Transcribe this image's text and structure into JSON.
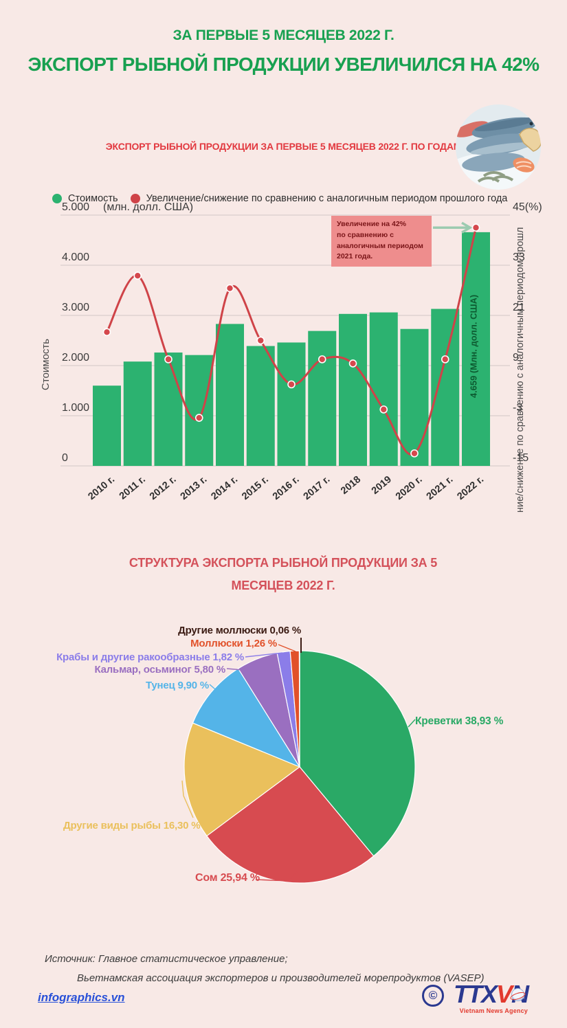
{
  "page": {
    "background": "#f8e9e6"
  },
  "header": {
    "kicker": "ЗА ПЕРВЫЕ 5 МЕСЯЦЕВ 2022 Г.",
    "title": "ЭКСПОРТ РЫБНОЙ ПРОДУКЦИИ УВЕЛИЧИЛСЯ НА 42%",
    "title_color": "#18a050"
  },
  "combo_section": {
    "caption": "ЭКСПОРТ РЫБНОЙ ПРОДУКЦИИ ЗА ПЕРВЫЕ 5 МЕСЯЦЕВ 2022 Г. ПО ГОДАМ",
    "caption_color": "#e2383f"
  },
  "chart_data": [
    {
      "type": "bar+line",
      "title": "ЭКСПОРТ РЫБНОЙ ПРОДУКЦИИ ЗА ПЕРВЫЕ 5 МЕСЯЦЕВ 2022 Г. ПО ГОДАМ",
      "categories": [
        "2010 г.",
        "2011 г.",
        "2012 г.",
        "2013 г.",
        "2014 г.",
        "2015 г.",
        "2016 г.",
        "2017 г.",
        "2018",
        "2019",
        "2020 г.",
        "2021 г.",
        "2022 г."
      ],
      "series": [
        {
          "name": "Стоимость",
          "type": "bar",
          "color": "#2cb270",
          "values": [
            1600,
            2080,
            2260,
            2210,
            2830,
            2390,
            2460,
            2690,
            3030,
            3060,
            2730,
            3130,
            4659
          ]
        },
        {
          "name": "Увеличение/снижение по сравнению с аналогичным периодом прошлого года",
          "type": "line",
          "color": "#cf4348",
          "values": [
            17,
            30.5,
            10.5,
            -3.5,
            27.5,
            15,
            4.5,
            10.5,
            9.5,
            -1.5,
            -12,
            10.5,
            42
          ]
        }
      ],
      "left_axis": {
        "title": "Стоимость",
        "unit": "(млн. долл. США)",
        "ticks": [
          "5.000",
          "4.000",
          "3.000",
          "2.000",
          "1.000",
          "0"
        ],
        "range": [
          0,
          5000
        ]
      },
      "right_axis": {
        "title": "ние/снижение по сравнению с аналогичным периодом прошл",
        "ticks": [
          "45(%)",
          "33",
          "21",
          "9",
          "-3",
          "-15"
        ],
        "range": [
          -15,
          45
        ]
      },
      "grid": "horizontal",
      "legend_position": "top",
      "bar_label": "4.659 (Млн. долл. США)",
      "bar_label_color": "#0d5b31",
      "point_color": "#d5484d",
      "grid_color": "#d9cecd",
      "tick_color": "#3a3a3a",
      "annotation": {
        "lines": [
          "Увеличение на 42%",
          " по сравнению с",
          "аналогичным периодом",
          "2021 года."
        ],
        "bg": "#ee8d8d",
        "text_color": "#7a1518",
        "arrow_color": "#9ccbb0"
      }
    },
    {
      "type": "pie",
      "title": "СТРУКТУРА ЭКСПОРТА РЫБНОЙ ПРОДУКЦИИ ЗА 5 МЕСЯЦЕВ 2022 Г.",
      "title_color": "#d4515a",
      "start_angle_deg": 0,
      "direction": "clockwise",
      "slices": [
        {
          "label": "Креветки 38,93 %",
          "value": 38.93,
          "color": "#2aa966"
        },
        {
          "label": "Сом 25,94 %",
          "value": 25.94,
          "color": "#d74b50"
        },
        {
          "label": "Другие виды рыбы 16,30 %",
          "value": 16.3,
          "color": "#eac05c"
        },
        {
          "label": "Тунец 9,90 %",
          "value": 9.9,
          "color": "#54b4e8"
        },
        {
          "label": "Кальмар, осьминог 5,80 %",
          "value": 5.8,
          "color": "#9a6fc0"
        },
        {
          "label": "Крабы и другие ракообразные 1,82 %",
          "value": 1.82,
          "color": "#8b7de9"
        },
        {
          "label": "Моллюски 1,26 %",
          "value": 1.26,
          "color": "#e1512a"
        },
        {
          "label": "Другие моллюски 0,06 %",
          "value": 0.06,
          "color": "#3a1a12"
        }
      ]
    }
  ],
  "footer": {
    "source_line1": "Источник: Главное статистическое управление;",
    "source_line2": "Вьетнамская ассоциация экспортеров и производителей морепродуктов (VASEP)",
    "link": "infographics.vn",
    "logo": {
      "copyright": "©",
      "ttx": "TTX",
      "v": "V",
      "n": "N",
      "tagline": "Vietnam News Agency",
      "blue": "#2b3990",
      "red": "#e23a2e"
    }
  }
}
